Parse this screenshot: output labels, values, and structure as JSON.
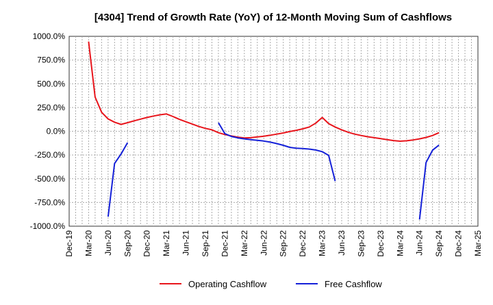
{
  "chart_data": {
    "type": "line",
    "title": "[4304]  Trend of Growth Rate (YoY) of 12-Month Moving Sum of Cashflows",
    "xlabel": "",
    "ylabel": "",
    "ylim": [
      -1000,
      1000
    ],
    "yticks": [
      1000,
      750,
      500,
      250,
      0,
      -250,
      -500,
      -750,
      -1000
    ],
    "ytick_labels": [
      "1000.0%",
      "750.0%",
      "500.0%",
      "250.0%",
      "0.0%",
      "-250.0%",
      "-500.0%",
      "-750.0%",
      "-1000.0%"
    ],
    "x_start": "2019-12",
    "x_end": "2025-03",
    "xtick_labels": [
      "Dec-19",
      "Mar-20",
      "Jun-20",
      "Sep-20",
      "Dec-20",
      "Mar-21",
      "Jun-21",
      "Sep-21",
      "Dec-21",
      "Mar-22",
      "Jun-22",
      "Sep-22",
      "Dec-22",
      "Mar-23",
      "Jun-23",
      "Sep-23",
      "Dec-23",
      "Mar-24",
      "Jun-24",
      "Sep-24",
      "Dec-24",
      "Mar-25"
    ],
    "grid": true,
    "legend_position": "bottom",
    "series": [
      {
        "name": "Operating Cashflow",
        "color": "#e8141b",
        "points": [
          [
            "2020-03",
            945
          ],
          [
            "2020-04",
            360
          ],
          [
            "2020-05",
            200
          ],
          [
            "2020-06",
            130
          ],
          [
            "2020-07",
            95
          ],
          [
            "2020-08",
            72
          ],
          [
            "2020-09",
            90
          ],
          [
            "2020-10",
            110
          ],
          [
            "2020-11",
            128
          ],
          [
            "2020-12",
            145
          ],
          [
            "2021-01",
            160
          ],
          [
            "2021-02",
            173
          ],
          [
            "2021-03",
            182
          ],
          [
            "2021-04",
            155
          ],
          [
            "2021-05",
            125
          ],
          [
            "2021-06",
            100
          ],
          [
            "2021-07",
            75
          ],
          [
            "2021-08",
            50
          ],
          [
            "2021-09",
            30
          ],
          [
            "2021-10",
            15
          ],
          [
            "2021-11",
            -15
          ],
          [
            "2021-12",
            -35
          ],
          [
            "2022-01",
            -50
          ],
          [
            "2022-02",
            -62
          ],
          [
            "2022-03",
            -70
          ],
          [
            "2022-04",
            -68
          ],
          [
            "2022-05",
            -60
          ],
          [
            "2022-06",
            -52
          ],
          [
            "2022-07",
            -42
          ],
          [
            "2022-08",
            -30
          ],
          [
            "2022-09",
            -18
          ],
          [
            "2022-10",
            -3
          ],
          [
            "2022-11",
            10
          ],
          [
            "2022-12",
            25
          ],
          [
            "2023-01",
            45
          ],
          [
            "2023-02",
            85
          ],
          [
            "2023-03",
            145
          ],
          [
            "2023-04",
            80
          ],
          [
            "2023-05",
            45
          ],
          [
            "2023-06",
            15
          ],
          [
            "2023-07",
            -10
          ],
          [
            "2023-08",
            -30
          ],
          [
            "2023-09",
            -45
          ],
          [
            "2023-10",
            -58
          ],
          [
            "2023-11",
            -68
          ],
          [
            "2023-12",
            -78
          ],
          [
            "2024-01",
            -88
          ],
          [
            "2024-02",
            -98
          ],
          [
            "2024-03",
            -105
          ],
          [
            "2024-04",
            -100
          ],
          [
            "2024-05",
            -92
          ],
          [
            "2024-06",
            -80
          ],
          [
            "2024-07",
            -65
          ],
          [
            "2024-08",
            -45
          ],
          [
            "2024-09",
            -15
          ]
        ]
      },
      {
        "name": "Free Cashflow",
        "color": "#1420d8",
        "segments": [
          [
            [
              "2020-06",
              -900
            ],
            [
              "2020-07",
              -340
            ],
            [
              "2020-08",
              -240
            ],
            [
              "2020-09",
              -120
            ]
          ],
          [
            [
              "2021-11",
              90
            ],
            [
              "2021-12",
              -25
            ],
            [
              "2022-01",
              -55
            ],
            [
              "2022-02",
              -70
            ],
            [
              "2022-03",
              -80
            ],
            [
              "2022-04",
              -88
            ],
            [
              "2022-05",
              -95
            ],
            [
              "2022-06",
              -103
            ],
            [
              "2022-07",
              -115
            ],
            [
              "2022-08",
              -130
            ],
            [
              "2022-09",
              -148
            ],
            [
              "2022-10",
              -170
            ],
            [
              "2022-11",
              -178
            ],
            [
              "2022-12",
              -182
            ],
            [
              "2023-01",
              -188
            ],
            [
              "2023-02",
              -198
            ],
            [
              "2023-03",
              -215
            ],
            [
              "2023-04",
              -255
            ],
            [
              "2023-05",
              -525
            ]
          ],
          [
            [
              "2024-06",
              -930
            ],
            [
              "2024-07",
              -330
            ],
            [
              "2024-08",
              -200
            ],
            [
              "2024-09",
              -145
            ]
          ]
        ]
      }
    ]
  }
}
